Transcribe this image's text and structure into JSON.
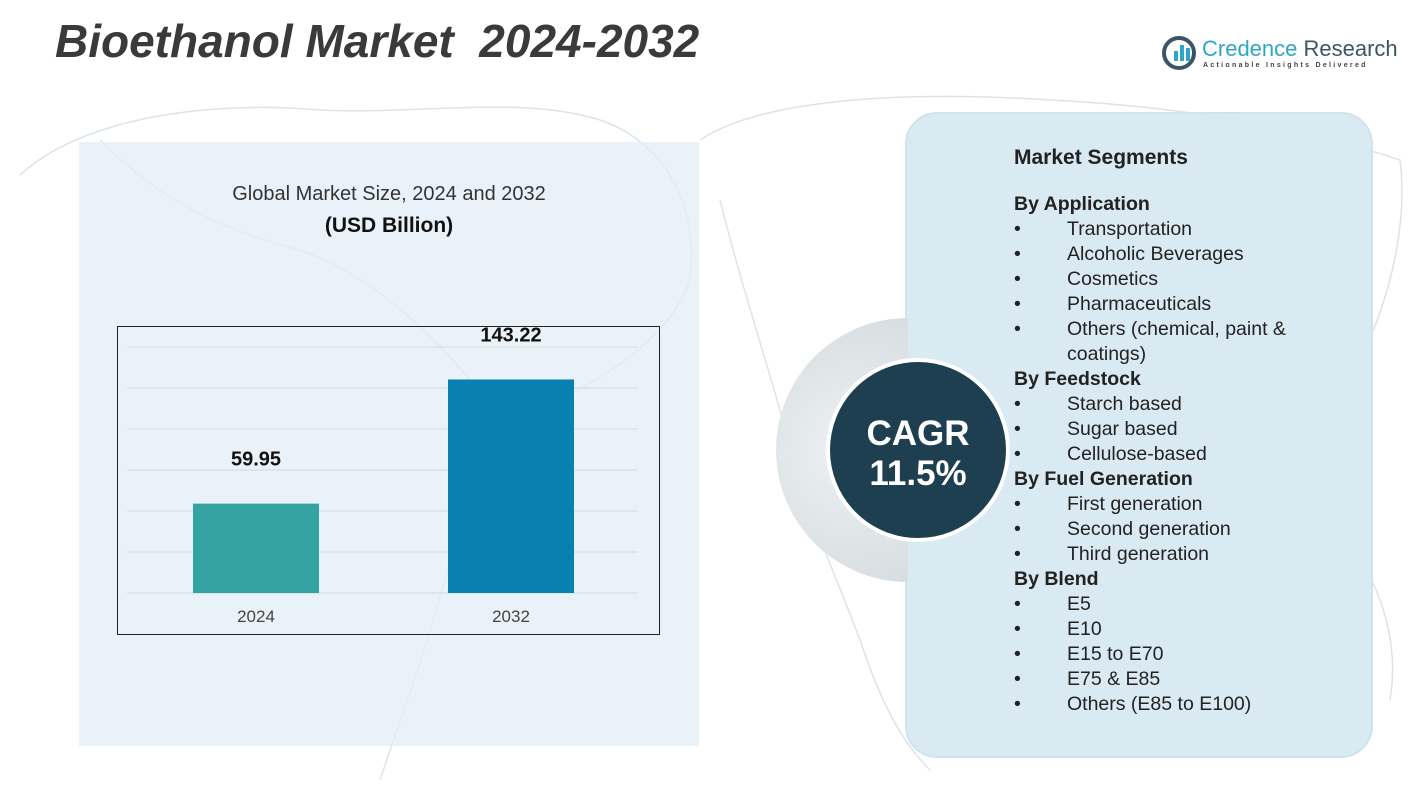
{
  "header": {
    "title": "Bioethanol Market  2024-2032"
  },
  "logo": {
    "name_part1": "Credence",
    "name_part2": " Research",
    "tagline": "Actionable Insights Delivered"
  },
  "chart_data": {
    "type": "bar",
    "title": "Global Market Size, 2024 and 2032",
    "ylabel": "(USD Billion)",
    "xlabel": "",
    "categories": [
      "2024",
      "2032"
    ],
    "values": [
      59.95,
      143.22
    ],
    "value_labels": [
      "59.95",
      "143.22"
    ],
    "colors": [
      "#35a3a2",
      "#0880b0"
    ],
    "ylim": [
      0,
      165
    ],
    "grid": true
  },
  "cagr": {
    "label": "CAGR",
    "value": "11.5%"
  },
  "segments": {
    "title": "Market Segments",
    "groups": [
      {
        "name": "By Application",
        "items": [
          "Transportation",
          "Alcoholic Beverages",
          "Cosmetics",
          "Pharmaceuticals",
          "Others (chemical, paint & coatings)"
        ]
      },
      {
        "name": "By Feedstock",
        "items": [
          "Starch based",
          "Sugar based",
          "Cellulose-based"
        ]
      },
      {
        "name": "By Fuel Generation",
        "items": [
          "First generation",
          "Second generation",
          "Third generation"
        ]
      },
      {
        "name": "By Blend",
        "items": [
          "E5",
          "E10",
          "E15 to E70",
          "E75 & E85",
          "Others (E85 to E100)"
        ]
      }
    ]
  }
}
